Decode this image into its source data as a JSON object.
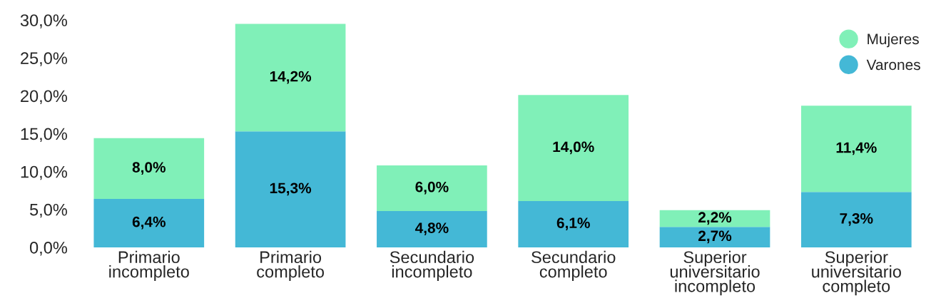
{
  "chart_data": {
    "type": "bar",
    "stacked": true,
    "categories": [
      "Primario incompleto",
      "Primario completo",
      "Secundario incompleto",
      "Secundario completo",
      "Superior universitario incompleto",
      "Superior universitario completo"
    ],
    "series": [
      {
        "name": "Varones",
        "color": "#44b8d6",
        "values": [
          6.4,
          15.3,
          4.8,
          6.1,
          2.7,
          7.3
        ],
        "value_labels": [
          "6,4%",
          "15,3%",
          "4,8%",
          "6,1%",
          "2,7%",
          "7,3%"
        ]
      },
      {
        "name": "Mujeres",
        "color": "#80f0b8",
        "values": [
          8.0,
          14.2,
          6.0,
          14.0,
          2.2,
          11.4
        ],
        "value_labels": [
          "8,0%",
          "14,2%",
          "6,0%",
          "14,0%",
          "2,2%",
          "11,4%"
        ]
      }
    ],
    "ylim": [
      0,
      30
    ],
    "yticks": [
      {
        "value": 0,
        "label": "0,0%"
      },
      {
        "value": 5,
        "label": "5,0%"
      },
      {
        "value": 10,
        "label": "10,0%"
      },
      {
        "value": 15,
        "label": "15,0%"
      },
      {
        "value": 20,
        "label": "20,0%"
      },
      {
        "value": 25,
        "label": "25,0%"
      },
      {
        "value": 30,
        "label": "30,0%"
      }
    ],
    "grid": false,
    "legend": "top right",
    "marker": "circle"
  }
}
